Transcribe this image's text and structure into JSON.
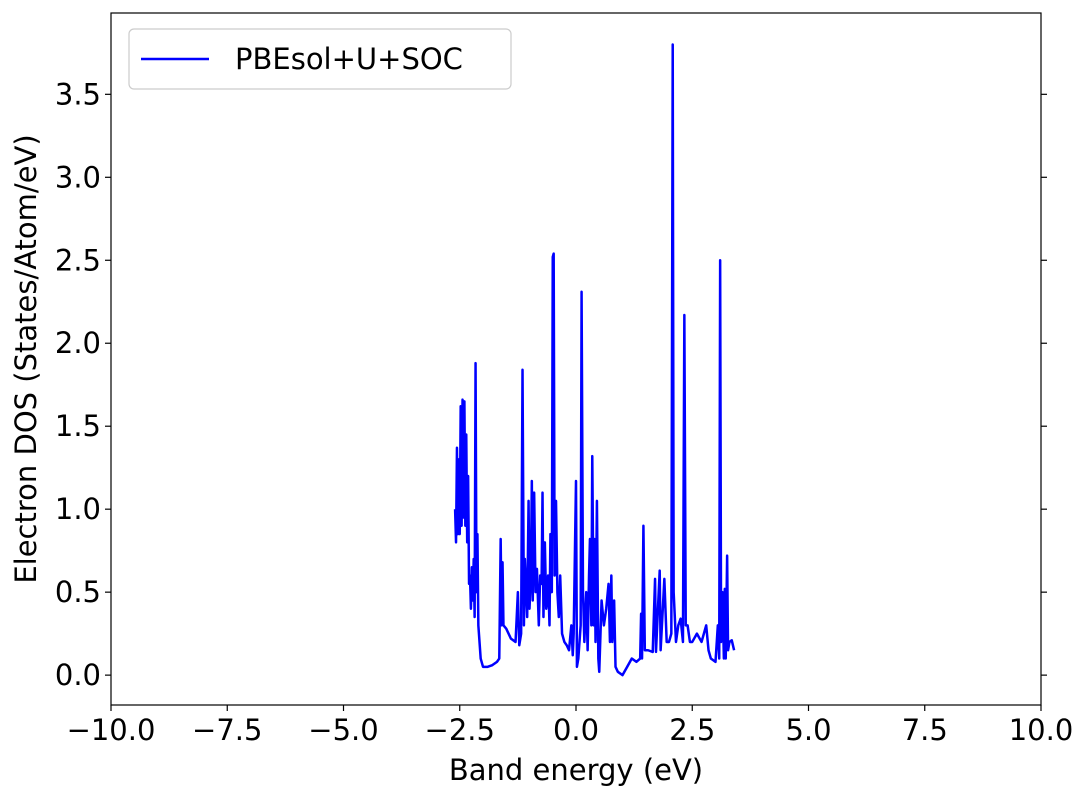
{
  "chart_data": {
    "type": "line",
    "xlabel": "Band energy (eV)",
    "ylabel": "Electron DOS (States/Atom/eV)",
    "xlim": [
      -10,
      10
    ],
    "ylim": [
      -0.18,
      3.99
    ],
    "xticks": [
      {
        "value": -10,
        "label": "−10.0"
      },
      {
        "value": -7.5,
        "label": "−7.5"
      },
      {
        "value": -5,
        "label": "−5.0"
      },
      {
        "value": -2.5,
        "label": "−2.5"
      },
      {
        "value": 0,
        "label": "0.0"
      },
      2.5,
      {
        "value": 5,
        "label": "5.0"
      },
      7.5,
      {
        "value": 10,
        "label": "10.0"
      }
    ],
    "yticks": [
      {
        "value": 0,
        "label": "0.0"
      },
      0.5,
      {
        "value": 1,
        "label": "1.0"
      },
      1.5,
      {
        "value": 2,
        "label": "2.0"
      },
      2.5,
      {
        "value": 3,
        "label": "3.0"
      },
      3.5
    ],
    "legend": "upper left",
    "x": [
      -2.6,
      -2.58,
      -2.56,
      -2.54,
      -2.52,
      -2.5,
      -2.48,
      -2.46,
      -2.44,
      -2.42,
      -2.4,
      -2.38,
      -2.36,
      -2.34,
      -2.32,
      -2.3,
      -2.28,
      -2.26,
      -2.24,
      -2.22,
      -2.2,
      -2.18,
      -2.16,
      -2.14,
      -2.12,
      -2.1,
      -2.05,
      -2.0,
      -1.9,
      -1.8,
      -1.7,
      -1.65,
      -1.62,
      -1.6,
      -1.58,
      -1.56,
      -1.5,
      -1.4,
      -1.3,
      -1.25,
      -1.22,
      -1.18,
      -1.15,
      -1.12,
      -1.1,
      -1.05,
      -1.02,
      -1.0,
      -0.97,
      -0.95,
      -0.93,
      -0.9,
      -0.87,
      -0.84,
      -0.8,
      -0.77,
      -0.74,
      -0.72,
      -0.7,
      -0.67,
      -0.64,
      -0.62,
      -0.6,
      -0.57,
      -0.55,
      -0.52,
      -0.5,
      -0.48,
      -0.46,
      -0.43,
      -0.4,
      -0.37,
      -0.34,
      -0.3,
      -0.25,
      -0.2,
      -0.15,
      -0.1,
      -0.07,
      -0.05,
      0.0,
      0.02,
      0.05,
      0.1,
      0.12,
      0.15,
      0.18,
      0.22,
      0.25,
      0.28,
      0.3,
      0.33,
      0.35,
      0.38,
      0.4,
      0.42,
      0.45,
      0.48,
      0.5,
      0.55,
      0.6,
      0.65,
      0.7,
      0.73,
      0.76,
      0.78,
      0.82,
      0.85,
      0.9,
      1.0,
      1.1,
      1.2,
      1.3,
      1.38,
      1.4,
      1.42,
      1.45,
      1.48,
      1.55,
      1.65,
      1.7,
      1.72,
      1.8,
      1.82,
      1.9,
      1.95,
      2.0,
      2.05,
      2.08,
      2.1,
      2.15,
      2.2,
      2.25,
      2.3,
      2.33,
      2.36,
      2.4,
      2.45,
      2.5,
      2.6,
      2.7,
      2.8,
      2.85,
      2.9,
      3.0,
      3.05,
      3.08,
      3.1,
      3.12,
      3.15,
      3.18,
      3.2,
      3.22,
      3.25,
      3.27,
      3.3,
      3.35,
      3.4
    ],
    "series": [
      {
        "name": "PBEsol+U+SOC",
        "color": "#0000ff",
        "values": [
          1.0,
          0.8,
          1.37,
          0.85,
          1.3,
          0.85,
          1.62,
          0.9,
          1.66,
          0.95,
          1.65,
          0.9,
          1.45,
          0.8,
          1.2,
          0.55,
          0.6,
          0.4,
          0.65,
          0.45,
          0.7,
          0.35,
          1.88,
          0.5,
          0.85,
          0.3,
          0.1,
          0.05,
          0.05,
          0.06,
          0.08,
          0.1,
          0.82,
          0.3,
          0.68,
          0.3,
          0.28,
          0.22,
          0.2,
          0.5,
          0.18,
          0.25,
          1.84,
          0.3,
          0.7,
          0.35,
          1.05,
          0.4,
          0.6,
          1.17,
          0.45,
          1.1,
          0.5,
          0.64,
          0.3,
          0.6,
          0.55,
          1.1,
          0.35,
          0.8,
          0.4,
          0.45,
          0.6,
          0.3,
          0.85,
          0.5,
          2.52,
          2.54,
          0.6,
          1.05,
          0.5,
          0.35,
          0.6,
          0.25,
          0.2,
          0.18,
          0.15,
          0.3,
          0.12,
          0.25,
          1.17,
          0.05,
          0.1,
          0.3,
          2.31,
          0.5,
          0.2,
          0.5,
          0.15,
          0.6,
          0.82,
          0.3,
          1.32,
          0.3,
          0.82,
          0.2,
          1.05,
          0.1,
          0.02,
          0.45,
          0.3,
          0.4,
          0.55,
          0.2,
          0.6,
          0.2,
          0.45,
          0.05,
          0.02,
          0.0,
          0.05,
          0.1,
          0.08,
          0.1,
          0.37,
          0.1,
          0.9,
          0.15,
          0.15,
          0.14,
          0.58,
          0.14,
          0.63,
          0.15,
          0.58,
          0.2,
          0.2,
          0.25,
          3.8,
          0.5,
          0.2,
          0.3,
          0.34,
          0.2,
          2.17,
          0.3,
          0.3,
          0.2,
          0.2,
          0.25,
          0.2,
          0.3,
          0.15,
          0.1,
          0.08,
          0.3,
          0.1,
          2.5,
          0.2,
          0.5,
          0.1,
          0.52,
          0.1,
          0.72,
          0.15,
          0.2,
          0.21,
          0.15
        ]
      }
    ]
  }
}
